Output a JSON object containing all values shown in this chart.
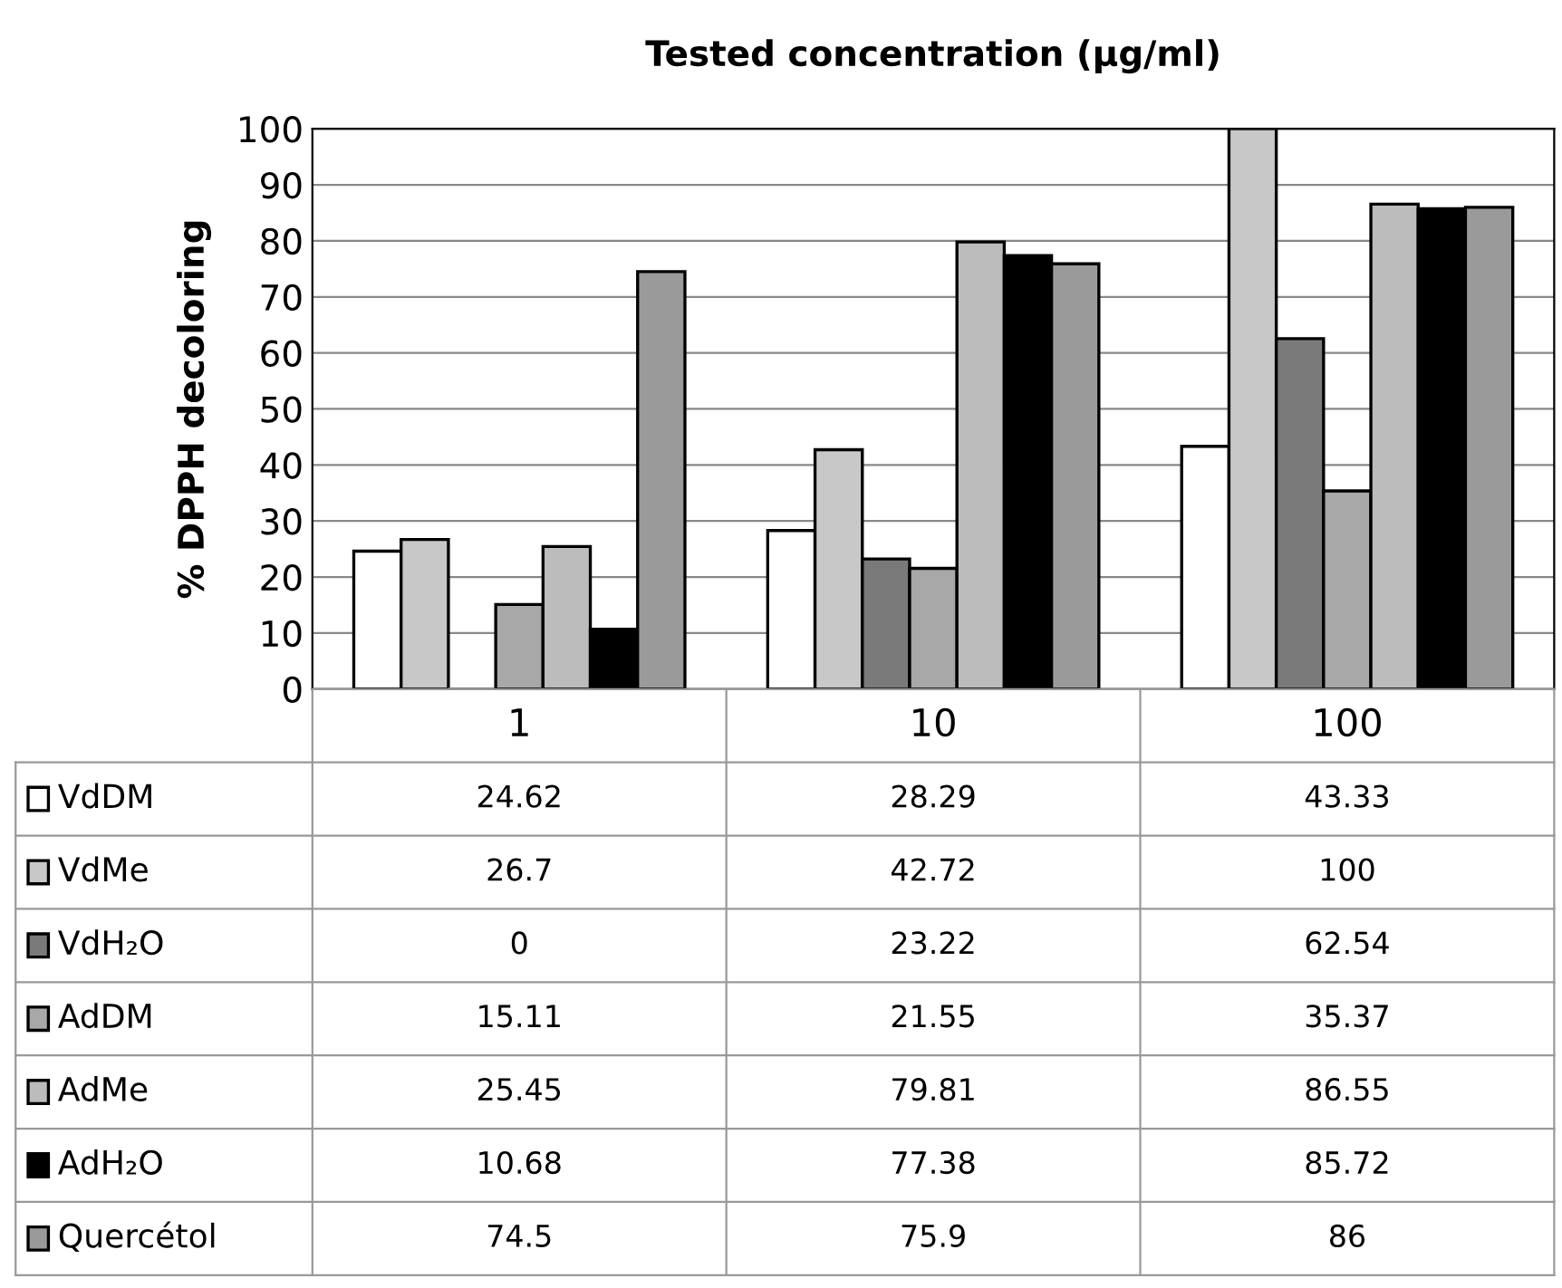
{
  "chart_data": {
    "type": "bar",
    "title": "Tested concentration (µg/ml)",
    "ylabel": "% DPPH decoloring",
    "categories": [
      "1",
      "10",
      "100"
    ],
    "series": [
      {
        "name": "VdDM",
        "color": "#ffffff",
        "values": [
          24.62,
          28.29,
          43.33
        ]
      },
      {
        "name": "VdMe",
        "color": "#c8c8c8",
        "values": [
          26.7,
          42.72,
          100
        ]
      },
      {
        "name": "VdH₂O",
        "color": "#7a7a7a",
        "values": [
          0,
          23.22,
          62.54
        ]
      },
      {
        "name": "AdDM",
        "color": "#a8a8a8",
        "values": [
          15.11,
          21.55,
          35.37
        ]
      },
      {
        "name": "AdMe",
        "color": "#bcbcbc",
        "values": [
          25.45,
          79.81,
          86.55
        ]
      },
      {
        "name": "AdH₂O",
        "color": "#000000",
        "values": [
          10.68,
          77.38,
          85.72
        ]
      },
      {
        "name": "Quercétol",
        "color": "#9a9a9a",
        "values": [
          74.5,
          75.9,
          86
        ]
      }
    ],
    "ylim": [
      0,
      100
    ],
    "yticks": [
      0,
      10,
      20,
      30,
      40,
      50,
      60,
      70,
      80,
      90,
      100
    ],
    "grid": "y",
    "data_labels": true,
    "legend": "bottom left"
  }
}
